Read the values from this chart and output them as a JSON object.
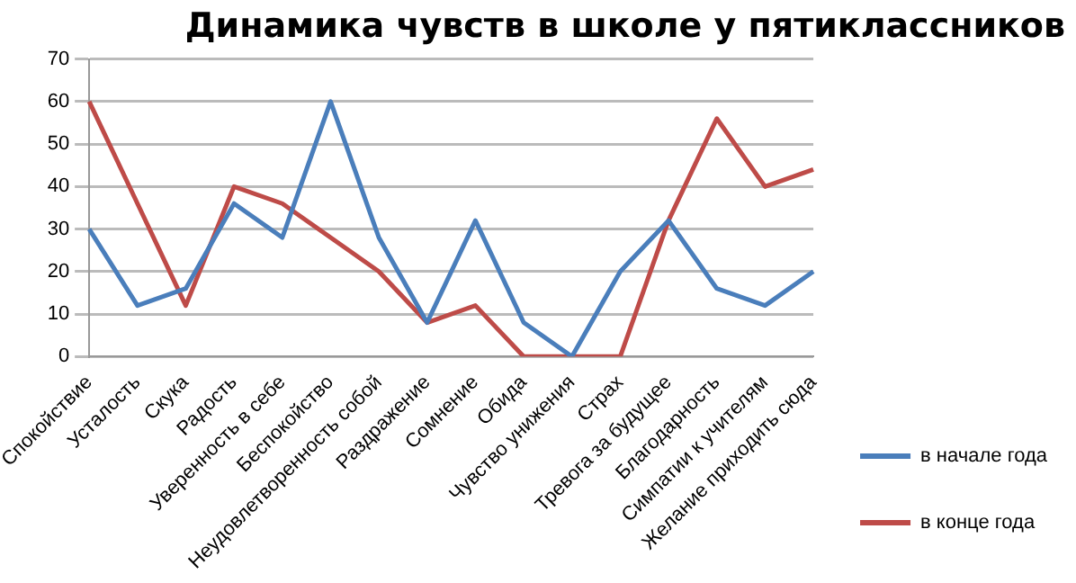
{
  "chart_data": {
    "type": "line",
    "title": "Динамика чувств в школе у пятиклассников",
    "categories": [
      "Спокойствие",
      "Усталость",
      "Скука",
      "Радость",
      "Уверенность в себе",
      "Беспокойство",
      "Неудовлетворенность собой",
      "Раздражение",
      "Сомнение",
      "Обида",
      "Чувство унижения",
      "Страх",
      "Тревога за будущее",
      "Благодарность",
      "Симпатии к учителям",
      "Желание приходить сюда"
    ],
    "series": [
      {
        "name": "в начале года",
        "color": "#4a7ebb",
        "values": [
          30,
          12,
          16,
          36,
          28,
          60,
          28,
          8,
          32,
          8,
          0,
          20,
          32,
          16,
          12,
          20
        ]
      },
      {
        "name": "в конце года",
        "color": "#be4b48",
        "values": [
          60,
          36,
          12,
          40,
          36,
          28,
          20,
          8,
          12,
          0,
          0,
          0,
          32,
          56,
          40,
          44
        ]
      }
    ],
    "ylim": [
      0,
      70
    ],
    "yticks": [
      0,
      10,
      20,
      30,
      40,
      50,
      60,
      70
    ],
    "grid": "y",
    "legend": "right",
    "marker": "none",
    "line_style": "solid"
  }
}
